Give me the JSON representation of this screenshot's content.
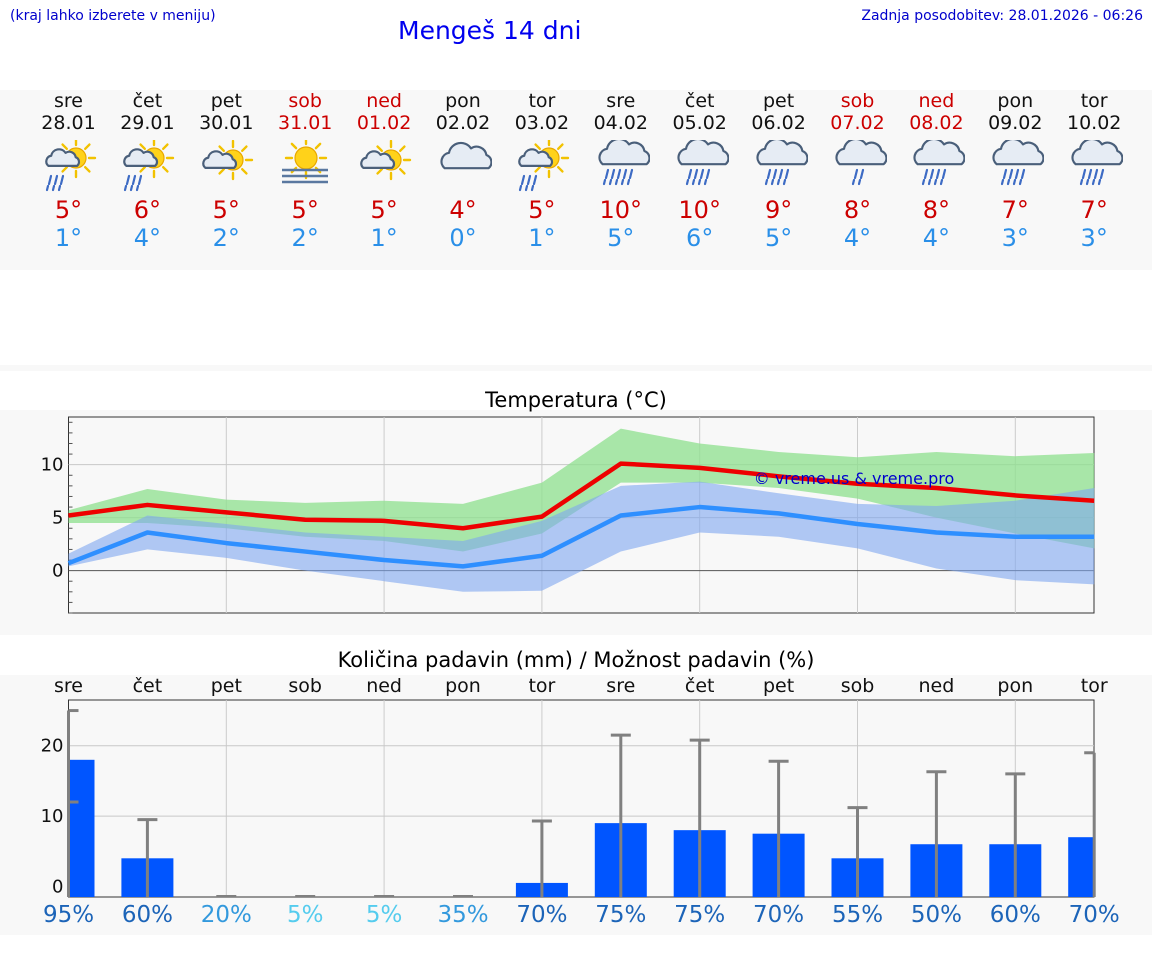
{
  "header": {
    "hint": "(kraj lahko izberete v meniju)",
    "title": "Mengeš 14 dni",
    "updated": "Zadnja posodobitev: 28.01.2026 - 06:26"
  },
  "days": [
    {
      "name": "sre",
      "date": "28.01",
      "weekend": false,
      "icon": "sun-cloud-rain-icon",
      "tmax": "5°",
      "tmin": "1°"
    },
    {
      "name": "čet",
      "date": "29.01",
      "weekend": false,
      "icon": "sun-cloud-rain-icon",
      "tmax": "6°",
      "tmin": "4°"
    },
    {
      "name": "pet",
      "date": "30.01",
      "weekend": false,
      "icon": "sun-cloud-icon",
      "tmax": "5°",
      "tmin": "2°"
    },
    {
      "name": "sob",
      "date": "31.01",
      "weekend": true,
      "icon": "sun-fog-icon",
      "tmax": "5°",
      "tmin": "2°"
    },
    {
      "name": "ned",
      "date": "01.02",
      "weekend": true,
      "icon": "sun-cloud-icon",
      "tmax": "5°",
      "tmin": "1°"
    },
    {
      "name": "pon",
      "date": "02.02",
      "weekend": false,
      "icon": "cloud-icon",
      "tmax": "4°",
      "tmin": "0°"
    },
    {
      "name": "tor",
      "date": "03.02",
      "weekend": false,
      "icon": "sun-cloud-rain-icon",
      "tmax": "5°",
      "tmin": "1°"
    },
    {
      "name": "sre",
      "date": "04.02",
      "weekend": false,
      "icon": "cloud-heavy-rain-icon",
      "tmax": "10°",
      "tmin": "5°"
    },
    {
      "name": "čet",
      "date": "05.02",
      "weekend": false,
      "icon": "cloud-rain-icon",
      "tmax": "10°",
      "tmin": "6°"
    },
    {
      "name": "pet",
      "date": "06.02",
      "weekend": false,
      "icon": "cloud-rain-icon",
      "tmax": "9°",
      "tmin": "5°"
    },
    {
      "name": "sob",
      "date": "07.02",
      "weekend": true,
      "icon": "cloud-light-rain-icon",
      "tmax": "8°",
      "tmin": "4°"
    },
    {
      "name": "ned",
      "date": "08.02",
      "weekend": true,
      "icon": "cloud-rain-icon",
      "tmax": "8°",
      "tmin": "4°"
    },
    {
      "name": "pon",
      "date": "09.02",
      "weekend": false,
      "icon": "cloud-rain-icon",
      "tmax": "7°",
      "tmin": "3°"
    },
    {
      "name": "tor",
      "date": "10.02",
      "weekend": false,
      "icon": "cloud-rain-icon",
      "tmax": "7°",
      "tmin": "3°"
    }
  ],
  "colors": {
    "max_line": "#ee0000",
    "min_line": "#2e8fff",
    "max_band": "#8ee08e",
    "min_band": "#7ea6f0",
    "bar": "#0055ff",
    "errbar": "#808080",
    "weekend": "#cc0000",
    "tmin_text": "#2a8fe8"
  },
  "chart_data": [
    {
      "type": "line",
      "title": "Temperatura (°C)",
      "watermark": "© vreme.us & vreme.pro",
      "x": [
        "28.01",
        "29.01",
        "30.01",
        "31.01",
        "01.02",
        "02.02",
        "03.02",
        "04.02",
        "05.02",
        "06.02",
        "07.02",
        "08.02",
        "09.02",
        "10.02"
      ],
      "ylim": [
        -4,
        14.5
      ],
      "yticks": [
        0,
        5,
        10
      ],
      "series": [
        {
          "name": "max",
          "values": [
            5.2,
            6.2,
            5.5,
            4.8,
            4.7,
            4.0,
            5.1,
            10.1,
            9.7,
            8.9,
            8.2,
            7.8,
            7.1,
            6.6
          ],
          "band_low": [
            4.5,
            4.5,
            4.0,
            3.2,
            2.8,
            1.8,
            3.5,
            8.3,
            8.3,
            7.8,
            6.8,
            5.0,
            3.5,
            2.1
          ],
          "band_high": [
            5.7,
            7.7,
            6.7,
            6.4,
            6.6,
            6.3,
            8.3,
            13.4,
            12.0,
            11.2,
            10.7,
            11.2,
            10.8,
            11.1
          ]
        },
        {
          "name": "min",
          "values": [
            0.7,
            3.6,
            2.6,
            1.8,
            1.0,
            0.4,
            1.4,
            5.2,
            6.0,
            5.4,
            4.4,
            3.6,
            3.2,
            3.2
          ],
          "band_low": [
            0.4,
            2.0,
            1.2,
            0.0,
            -1.0,
            -2.0,
            -1.9,
            1.8,
            3.6,
            3.2,
            2.1,
            0.2,
            -0.9,
            -1.3
          ],
          "band_high": [
            1.6,
            5.2,
            4.4,
            3.6,
            3.2,
            2.8,
            4.7,
            8.0,
            8.4,
            7.3,
            6.3,
            6.1,
            6.6,
            7.8
          ]
        }
      ]
    },
    {
      "type": "bar",
      "title": "Količina padavin (mm) / Možnost padavin (%)",
      "categories": [
        "sre",
        "čet",
        "pet",
        "sob",
        "ned",
        "pon",
        "tor",
        "sre",
        "čet",
        "pet",
        "sob",
        "ned",
        "pon",
        "tor"
      ],
      "values": [
        18,
        4,
        0,
        0,
        0,
        0,
        0.5,
        9,
        8,
        7.5,
        4,
        6,
        6,
        7
      ],
      "err_high": [
        25,
        9.5,
        0,
        0,
        0,
        0,
        9.3,
        21.5,
        20.8,
        17.8,
        11.2,
        16.3,
        16.0,
        19.0
      ],
      "err_low": [
        12,
        0,
        0,
        0,
        0,
        0,
        0,
        0,
        0,
        0,
        0,
        0,
        0,
        0
      ],
      "ylim": [
        -1.5,
        26.5
      ],
      "yticks": [
        0,
        10,
        20
      ],
      "chance": [
        {
          "label": "95%",
          "color": "#1c64b8"
        },
        {
          "label": "60%",
          "color": "#1c64b8"
        },
        {
          "label": "20%",
          "color": "#3399dd"
        },
        {
          "label": "5%",
          "color": "#55ccee"
        },
        {
          "label": "5%",
          "color": "#55ccee"
        },
        {
          "label": "35%",
          "color": "#3399dd"
        },
        {
          "label": "70%",
          "color": "#1c64b8"
        },
        {
          "label": "75%",
          "color": "#1c64b8"
        },
        {
          "label": "75%",
          "color": "#1c64b8"
        },
        {
          "label": "70%",
          "color": "#1c64b8"
        },
        {
          "label": "55%",
          "color": "#1c64b8"
        },
        {
          "label": "50%",
          "color": "#1c64b8"
        },
        {
          "label": "60%",
          "color": "#1c64b8"
        },
        {
          "label": "70%",
          "color": "#1c64b8"
        }
      ]
    }
  ]
}
